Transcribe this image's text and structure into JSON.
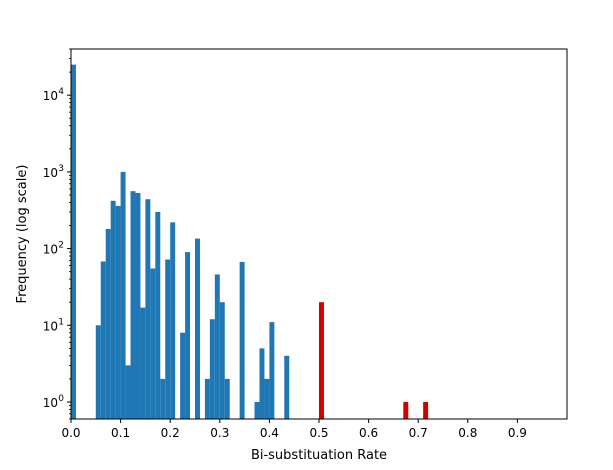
{
  "chart_data": {
    "type": "bar",
    "title": "",
    "xlabel": "Bi-substituation Rate",
    "ylabel": "Frequency (log scale)",
    "xlim": [
      0.0,
      1.0
    ],
    "ylim": [
      0.6,
      40000
    ],
    "yscale": "log",
    "grid": false,
    "legend": "none",
    "bin_width": 0.01,
    "x_ticks": [
      {
        "value": 0.0,
        "label": "0.0"
      },
      {
        "value": 0.1,
        "label": "0.1"
      },
      {
        "value": 0.2,
        "label": "0.2"
      },
      {
        "value": 0.3,
        "label": "0.3"
      },
      {
        "value": 0.4,
        "label": "0.4"
      },
      {
        "value": 0.5,
        "label": "0.5"
      },
      {
        "value": 0.6,
        "label": "0.6"
      },
      {
        "value": 0.7,
        "label": "0.7"
      },
      {
        "value": 0.8,
        "label": "0.8"
      },
      {
        "value": 0.9,
        "label": "0.9"
      }
    ],
    "y_ticks": [
      {
        "value": 1,
        "base": "10",
        "exp": "0"
      },
      {
        "value": 10,
        "base": "10",
        "exp": "1"
      },
      {
        "value": 100,
        "base": "10",
        "exp": "2"
      },
      {
        "value": 1000,
        "base": "10",
        "exp": "3"
      },
      {
        "value": 10000,
        "base": "10",
        "exp": "4"
      }
    ],
    "series": [
      {
        "color": "#1f77b4",
        "points": [
          {
            "x": 0.0,
            "y": 25000
          },
          {
            "x": 0.05,
            "y": 10
          },
          {
            "x": 0.06,
            "y": 68
          },
          {
            "x": 0.07,
            "y": 180
          },
          {
            "x": 0.08,
            "y": 420
          },
          {
            "x": 0.09,
            "y": 360
          },
          {
            "x": 0.1,
            "y": 1000
          },
          {
            "x": 0.11,
            "y": 3
          },
          {
            "x": 0.12,
            "y": 560
          },
          {
            "x": 0.13,
            "y": 530
          },
          {
            "x": 0.14,
            "y": 17
          },
          {
            "x": 0.15,
            "y": 440
          },
          {
            "x": 0.16,
            "y": 55
          },
          {
            "x": 0.17,
            "y": 300
          },
          {
            "x": 0.18,
            "y": 2
          },
          {
            "x": 0.19,
            "y": 72
          },
          {
            "x": 0.2,
            "y": 220
          },
          {
            "x": 0.22,
            "y": 8
          },
          {
            "x": 0.23,
            "y": 90
          },
          {
            "x": 0.25,
            "y": 135
          },
          {
            "x": 0.27,
            "y": 2
          },
          {
            "x": 0.28,
            "y": 12
          },
          {
            "x": 0.29,
            "y": 46
          },
          {
            "x": 0.3,
            "y": 20
          },
          {
            "x": 0.31,
            "y": 2
          },
          {
            "x": 0.34,
            "y": 67
          },
          {
            "x": 0.37,
            "y": 1
          },
          {
            "x": 0.38,
            "y": 5
          },
          {
            "x": 0.39,
            "y": 2
          },
          {
            "x": 0.4,
            "y": 11
          },
          {
            "x": 0.43,
            "y": 4
          }
        ]
      },
      {
        "color": "#d40000",
        "points": [
          {
            "x": 0.5,
            "y": 20
          },
          {
            "x": 0.67,
            "y": 1
          },
          {
            "x": 0.71,
            "y": 1
          }
        ]
      }
    ]
  }
}
